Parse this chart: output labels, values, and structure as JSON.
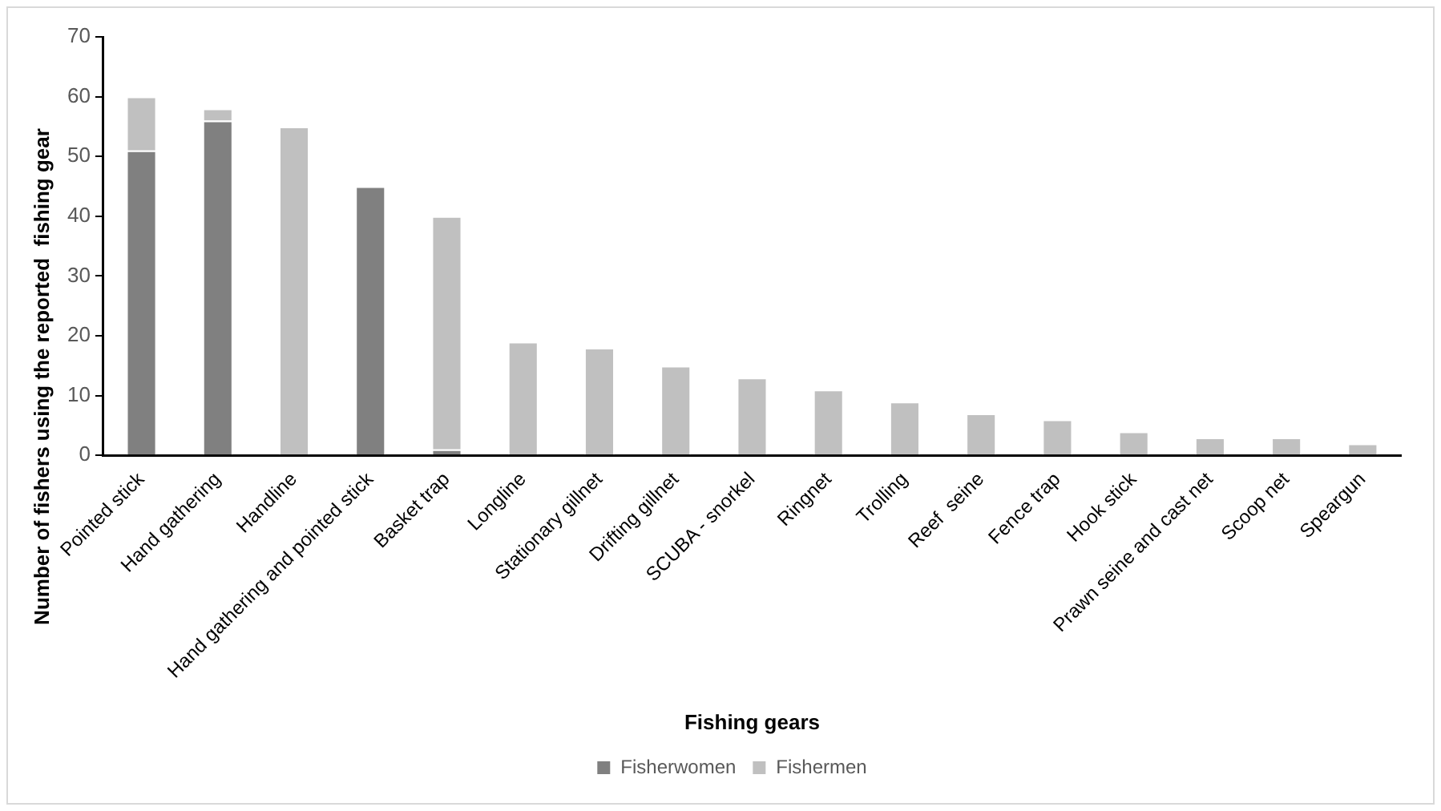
{
  "chart_data": {
    "type": "bar",
    "stacked": true,
    "xlabel": "Fishing gears",
    "ylabel": "Number of fishers using the reported  fishing gear",
    "categories": [
      "Pointed stick",
      "Hand gathering",
      "Handline",
      "Hand gathering and pointed stick",
      "Basket trap",
      "Longline",
      "Stationary gillnet",
      "Drifting gillnet",
      "SCUBA - snorkel",
      "Ringnet",
      "Trolling",
      "Reef  seine",
      "Fence trap",
      "Hook stick",
      "Prawn seine and cast net",
      "Scoop net",
      "Speargun"
    ],
    "series": [
      {
        "name": "Fisherwomen",
        "color": "#808080",
        "values": [
          51,
          56,
          0,
          45,
          1,
          0,
          0,
          0,
          0,
          0,
          0,
          0,
          0,
          0,
          0,
          0,
          0
        ]
      },
      {
        "name": "Fishermen",
        "color": "#c0c0c0",
        "values": [
          9,
          2,
          55,
          0,
          39,
          19,
          18,
          15,
          13,
          11,
          9,
          7,
          6,
          4,
          3,
          3,
          2
        ]
      }
    ],
    "ylim": [
      0,
      70
    ],
    "yticks": [
      0,
      10,
      20,
      30,
      40,
      50,
      60,
      70
    ],
    "grid": false,
    "legend": "bottom"
  }
}
